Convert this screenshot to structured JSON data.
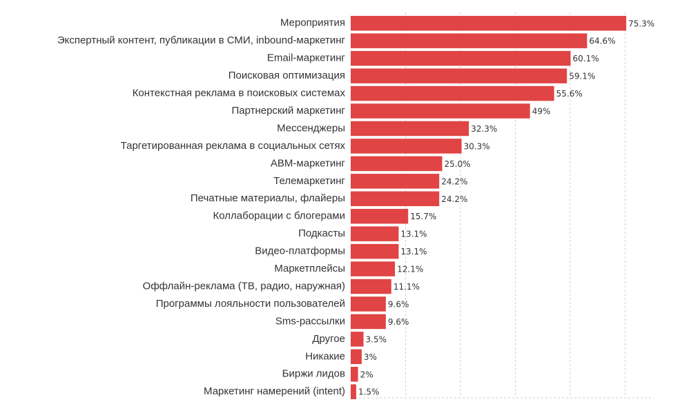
{
  "chart_data": {
    "type": "bar",
    "orientation": "horizontal",
    "bar_color": "#e04444",
    "grid": true,
    "xlim": [
      0,
      80
    ],
    "categories": [
      "Мероприятия",
      "Экспертный контент, публикации в СМИ, inbound-маркетинг",
      "Email-маркетинг",
      "Поисковая оптимизация",
      "Контекстная реклама в поисковых системах",
      "Партнерский маркетинг",
      "Мессенджеры",
      "Таргетированная реклама в социальных сетях",
      "ABM-маркетинг",
      "Телемаркетинг",
      "Печатные материалы, флайеры",
      "Коллаборации с блогерами",
      "Подкасты",
      "Видео-платформы",
      "Маркетплейсы",
      "Оффлайн-реклама (ТВ, радио, наружная)",
      "Программы лояльности пользователей",
      "Sms-рассылки",
      "Другое",
      "Никакие",
      "Биржи лидов",
      "Маркетинг намерений (intent)"
    ],
    "values": [
      75.3,
      64.6,
      60.1,
      59.1,
      55.6,
      49,
      32.3,
      30.3,
      25.0,
      24.2,
      24.2,
      15.7,
      13.1,
      13.1,
      12.1,
      11.1,
      9.6,
      9.6,
      3.5,
      3,
      2,
      1.5
    ],
    "value_labels": [
      "75.3%",
      "64.6%",
      "60.1%",
      "59.1%",
      "55.6%",
      "49%",
      "32.3%",
      "30.3%",
      "25.0%",
      "24.2%",
      "24.2%",
      "15.7%",
      "13.1%",
      "13.1%",
      "12.1%",
      "11.1%",
      "9.6%",
      "9.6%",
      "3.5%",
      "3%",
      "2%",
      "1.5%"
    ]
  }
}
